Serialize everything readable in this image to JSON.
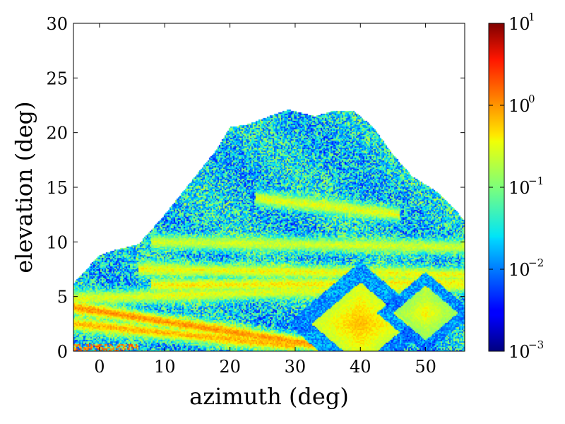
{
  "chart_data": {
    "type": "heatmap",
    "title": "",
    "xlabel": "azimuth (deg)",
    "ylabel": "elevation (deg)",
    "xlim": [
      -4,
      56
    ],
    "ylim": [
      0,
      30
    ],
    "x_ticks": [
      0,
      10,
      20,
      30,
      40,
      50
    ],
    "y_ticks": [
      0,
      5,
      10,
      15,
      20,
      25,
      30
    ],
    "grid": false,
    "colormap": "jet",
    "color_scale": "log",
    "colorbar": {
      "ticks": [
        {
          "base": "10",
          "exp": "1",
          "value": 10
        },
        {
          "base": "10",
          "exp": "0",
          "value": 1
        },
        {
          "base": "10",
          "exp": "−1",
          "value": 0.1
        },
        {
          "base": "10",
          "exp": "−2",
          "value": 0.01
        },
        {
          "base": "10",
          "exp": "−3",
          "value": 0.001
        }
      ],
      "range": [
        0.001,
        10
      ]
    },
    "footprint_upper_boundary": [
      {
        "az": -4,
        "el": 6.2
      },
      {
        "az": 0,
        "el": 8.8
      },
      {
        "az": 2,
        "el": 9.2
      },
      {
        "az": 6,
        "el": 9.8
      },
      {
        "az": 10,
        "el": 12.5
      },
      {
        "az": 14,
        "el": 15.5
      },
      {
        "az": 18,
        "el": 18.5
      },
      {
        "az": 20,
        "el": 20.5
      },
      {
        "az": 23,
        "el": 20.8
      },
      {
        "az": 26,
        "el": 21.5
      },
      {
        "az": 29,
        "el": 22.1
      },
      {
        "az": 33,
        "el": 21.5
      },
      {
        "az": 36,
        "el": 22.0
      },
      {
        "az": 39,
        "el": 22.0
      },
      {
        "az": 42,
        "el": 20.5
      },
      {
        "az": 45,
        "el": 18.0
      },
      {
        "az": 48,
        "el": 16.0
      },
      {
        "az": 52,
        "el": 14.5
      },
      {
        "az": 56,
        "el": 12.0
      }
    ],
    "features": [
      {
        "kind": "band",
        "from": {
          "az": -4,
          "el": 4.0
        },
        "to": {
          "az": 36,
          "el": 0.3
        },
        "value": 1.0
      },
      {
        "kind": "band",
        "from": {
          "az": -4,
          "el": 2.5
        },
        "to": {
          "az": 30,
          "el": 0.5
        },
        "value": 0.7
      },
      {
        "kind": "band",
        "from": {
          "az": 8,
          "el": 6.0
        },
        "to": {
          "az": 56,
          "el": 6.3
        },
        "value": 0.4
      },
      {
        "kind": "band",
        "from": {
          "az": -4,
          "el": 4.8
        },
        "to": {
          "az": 56,
          "el": 6.0
        },
        "value": 0.3
      },
      {
        "kind": "band",
        "from": {
          "az": 6,
          "el": 7.5
        },
        "to": {
          "az": 56,
          "el": 7.0
        },
        "value": 0.35
      },
      {
        "kind": "diamond",
        "center": {
          "az": 40,
          "el": 2.5
        },
        "half_width": 7.5,
        "half_height": 3.8,
        "value": 0.7
      },
      {
        "kind": "diamond",
        "center": {
          "az": 50,
          "el": 3.5
        },
        "half_width": 5.0,
        "half_height": 2.5,
        "value": 0.4
      },
      {
        "kind": "band",
        "from": {
          "az": 8,
          "el": 10.0
        },
        "to": {
          "az": 56,
          "el": 9.5
        },
        "value": 0.25
      },
      {
        "kind": "band",
        "from": {
          "az": 24,
          "el": 14.0
        },
        "to": {
          "az": 46,
          "el": 12.5
        },
        "value": 0.3
      }
    ]
  }
}
